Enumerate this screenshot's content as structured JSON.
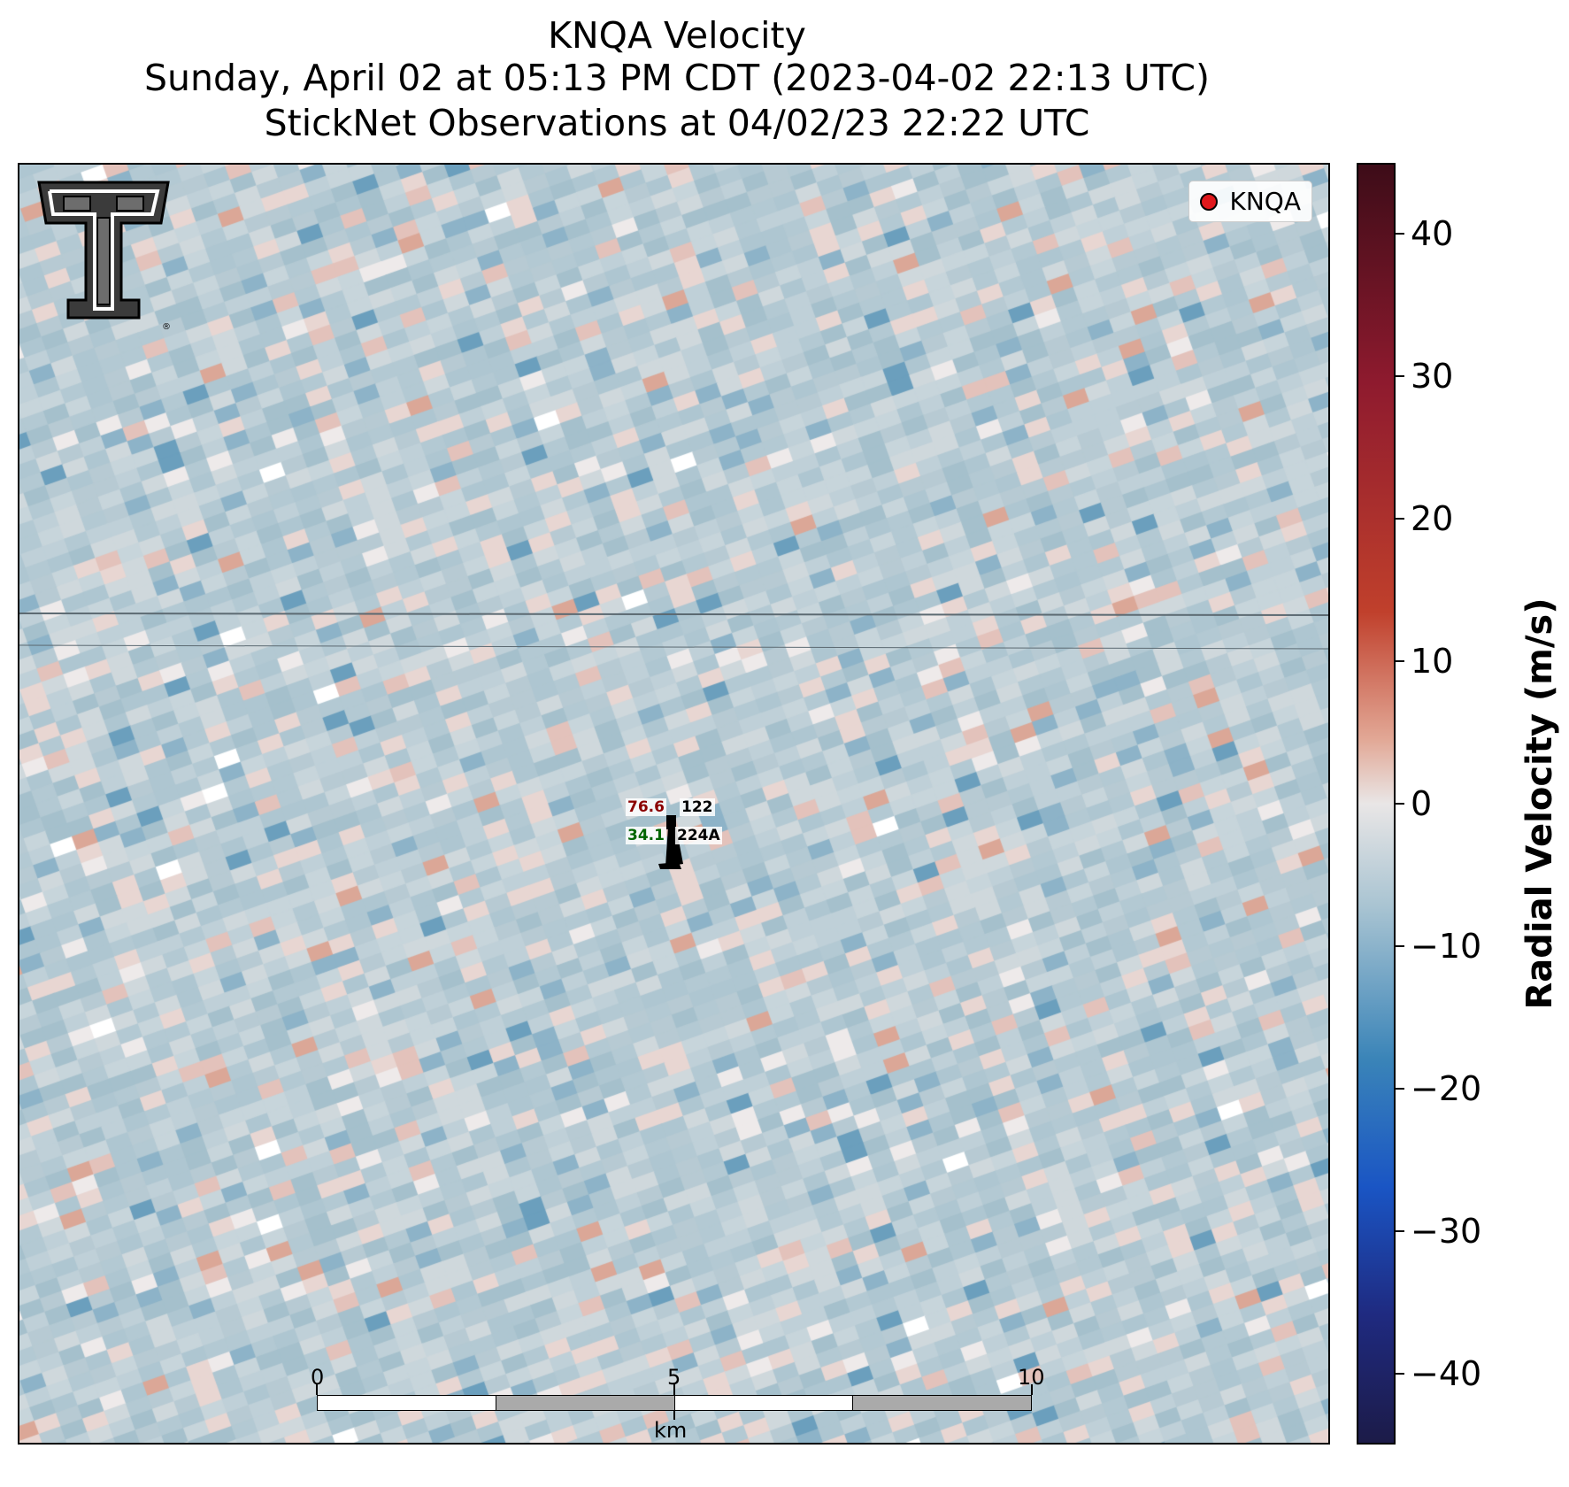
{
  "title": {
    "line1": "KNQA Velocity",
    "line2": "Sunday, April 02 at 05:13 PM CDT (2023-04-02 22:13 UTC)",
    "line3": "StickNet Observations at 04/02/23 22:22 UTC"
  },
  "legend": {
    "label": "KNQA",
    "marker_color": "#e0181c"
  },
  "logo": {
    "icon": "double-t-logo-icon",
    "mark": "®"
  },
  "station": {
    "temperature": "76.6",
    "dewpoint": "34.1",
    "id_top": "122",
    "id_bottom": "224A",
    "temperature_color": "#8b0000",
    "dewpoint_color": "#006400",
    "icon": "wind-barb-icon"
  },
  "scale_bar": {
    "labels": [
      "0",
      "5",
      "10"
    ],
    "unit": "km"
  },
  "colorbar": {
    "label": "Radial Velocity (m/s)",
    "min": -45,
    "max": 45,
    "ticks": [
      "40",
      "30",
      "20",
      "10",
      "0",
      "−10",
      "−20",
      "−30",
      "−40"
    ],
    "tick_values": [
      40,
      30,
      20,
      10,
      0,
      -10,
      -20,
      -30,
      -40
    ]
  }
}
